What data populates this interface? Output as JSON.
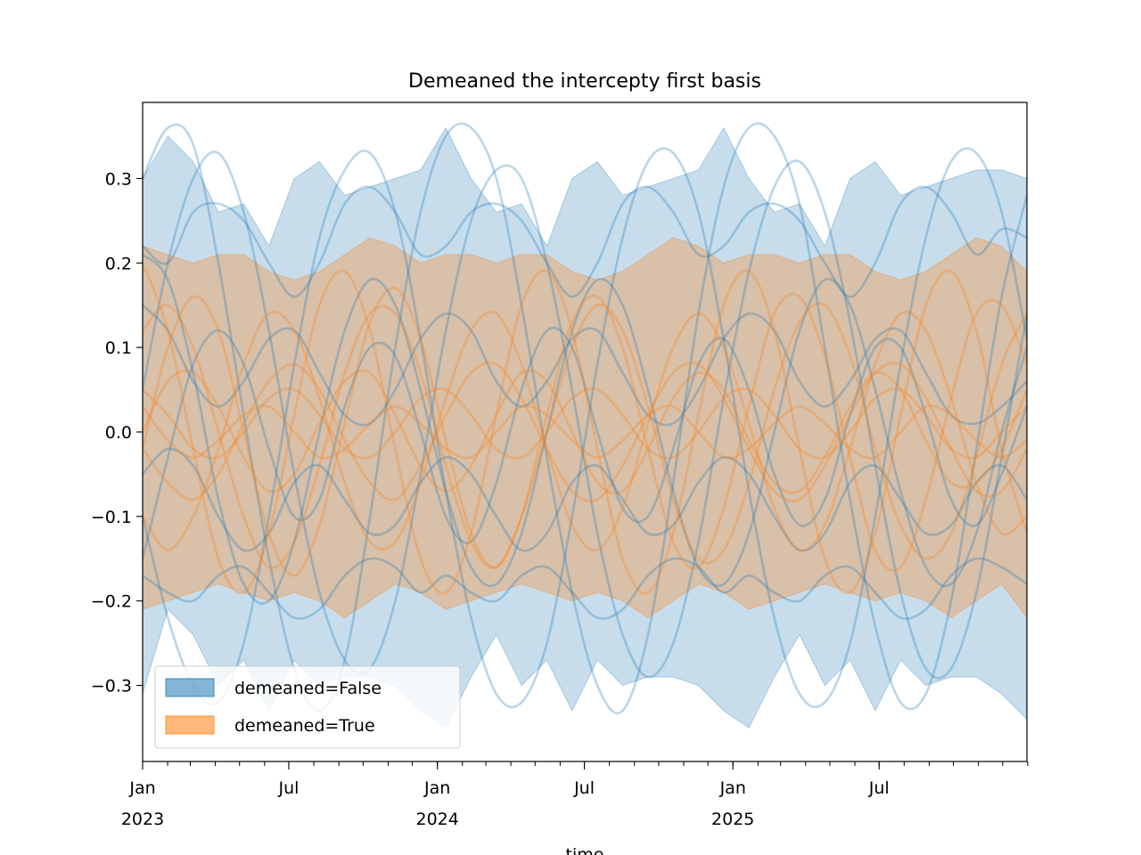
{
  "chart_data": {
    "type": "line",
    "title": "Demeaned the intercepty first basis",
    "xlabel": "time",
    "ylabel": "",
    "x_range": [
      "2023-01-01",
      "2025-12-31"
    ],
    "ylim": [
      -0.39,
      0.39
    ],
    "grid": false,
    "legend_position": "lower-left",
    "y_ticks": [
      {
        "value": 0.3,
        "label": "0.3"
      },
      {
        "value": 0.2,
        "label": "0.2"
      },
      {
        "value": 0.1,
        "label": "0.1"
      },
      {
        "value": 0.0,
        "label": "0.0"
      },
      {
        "value": -0.1,
        "label": "−0.1"
      },
      {
        "value": -0.2,
        "label": "−0.2"
      },
      {
        "value": -0.3,
        "label": "−0.3"
      }
    ],
    "x_ticks": [
      {
        "date": "2023-01-01",
        "label": "Jan",
        "sublabel": "2023"
      },
      {
        "date": "2023-07-01",
        "label": "Jul",
        "sublabel": ""
      },
      {
        "date": "2024-01-01",
        "label": "Jan",
        "sublabel": "2024"
      },
      {
        "date": "2024-07-01",
        "label": "Jul",
        "sublabel": ""
      },
      {
        "date": "2025-01-01",
        "label": "Jan",
        "sublabel": "2025"
      },
      {
        "date": "2025-07-01",
        "label": "Jul",
        "sublabel": ""
      }
    ],
    "series": [
      {
        "name": "demeaned=False",
        "color": "#1f77b4",
        "band_upper": [
          0.3,
          0.35,
          0.32,
          0.26,
          0.27,
          0.22,
          0.3,
          0.32,
          0.28,
          0.29,
          0.3,
          0.31,
          0.36,
          0.3,
          0.26,
          0.27,
          0.22,
          0.3,
          0.32,
          0.28,
          0.29,
          0.3,
          0.31,
          0.36,
          0.3,
          0.26,
          0.27,
          0.22,
          0.3,
          0.32,
          0.28,
          0.29,
          0.3,
          0.31,
          0.31,
          0.3
        ],
        "band_lower": [
          -0.31,
          -0.21,
          -0.24,
          -0.3,
          -0.27,
          -0.33,
          -0.27,
          -0.3,
          -0.29,
          -0.29,
          -0.3,
          -0.33,
          -0.35,
          -0.29,
          -0.24,
          -0.3,
          -0.27,
          -0.33,
          -0.27,
          -0.3,
          -0.29,
          -0.29,
          -0.3,
          -0.33,
          -0.35,
          -0.29,
          -0.24,
          -0.3,
          -0.27,
          -0.33,
          -0.27,
          -0.3,
          -0.29,
          -0.29,
          -0.31,
          -0.34
        ],
        "sample_lines": [
          [
            0.3,
            0.36,
            0.34,
            0.2,
            0.02,
            -0.15,
            -0.28,
            -0.33,
            -0.27,
            -0.1,
            0.1,
            0.26,
            0.35,
            0.36,
            0.3,
            0.15,
            -0.03,
            -0.19,
            -0.3,
            -0.33,
            -0.24,
            -0.06,
            0.14,
            0.29,
            0.36,
            0.35,
            0.27,
            0.1,
            -0.08,
            -0.23,
            -0.32,
            -0.31,
            -0.2,
            -0.02,
            0.16,
            0.28
          ],
          [
            0.22,
            0.2,
            0.26,
            0.27,
            0.25,
            0.2,
            0.16,
            0.2,
            0.27,
            0.29,
            0.26,
            0.21,
            0.22,
            0.26,
            0.27,
            0.25,
            0.2,
            0.16,
            0.2,
            0.27,
            0.29,
            0.26,
            0.21,
            0.22,
            0.26,
            0.27,
            0.25,
            0.2,
            0.16,
            0.2,
            0.27,
            0.29,
            0.26,
            0.21,
            0.24,
            0.23
          ],
          [
            0.05,
            0.2,
            0.3,
            0.33,
            0.26,
            0.12,
            -0.05,
            -0.19,
            -0.27,
            -0.28,
            -0.2,
            -0.05,
            0.12,
            0.25,
            0.31,
            0.3,
            0.2,
            0.05,
            -0.12,
            -0.24,
            -0.29,
            -0.25,
            -0.13,
            0.04,
            0.19,
            0.29,
            0.32,
            0.26,
            0.13,
            -0.04,
            -0.19,
            -0.28,
            -0.28,
            -0.19,
            -0.03,
            0.14
          ],
          [
            -0.1,
            -0.22,
            -0.3,
            -0.32,
            -0.25,
            -0.1,
            0.08,
            0.23,
            0.31,
            0.33,
            0.26,
            0.11,
            -0.07,
            -0.22,
            -0.31,
            -0.32,
            -0.25,
            -0.1,
            0.08,
            0.23,
            0.32,
            0.33,
            0.26,
            0.11,
            -0.07,
            -0.22,
            -0.31,
            -0.32,
            -0.25,
            -0.1,
            0.08,
            0.23,
            0.32,
            0.33,
            0.26,
            0.11
          ],
          [
            0.15,
            0.12,
            0.06,
            0.03,
            0.06,
            0.11,
            0.12,
            0.07,
            0.02,
            0.01,
            0.05,
            0.11,
            0.14,
            0.12,
            0.06,
            0.03,
            0.06,
            0.11,
            0.12,
            0.07,
            0.02,
            0.01,
            0.05,
            0.11,
            0.14,
            0.12,
            0.06,
            0.03,
            0.06,
            0.11,
            0.12,
            0.07,
            0.02,
            0.01,
            0.03,
            0.06
          ],
          [
            -0.05,
            -0.02,
            -0.04,
            -0.1,
            -0.14,
            -0.12,
            -0.06,
            -0.04,
            -0.08,
            -0.12,
            -0.11,
            -0.06,
            -0.03,
            -0.05,
            -0.1,
            -0.14,
            -0.12,
            -0.06,
            -0.04,
            -0.08,
            -0.12,
            -0.11,
            -0.06,
            -0.03,
            -0.05,
            -0.1,
            -0.14,
            -0.12,
            -0.06,
            -0.04,
            -0.08,
            -0.12,
            -0.11,
            -0.06,
            -0.04,
            -0.08
          ],
          [
            -0.17,
            -0.19,
            -0.2,
            -0.17,
            -0.16,
            -0.19,
            -0.22,
            -0.21,
            -0.17,
            -0.15,
            -0.16,
            -0.19,
            -0.17,
            -0.19,
            -0.2,
            -0.17,
            -0.16,
            -0.19,
            -0.22,
            -0.21,
            -0.17,
            -0.15,
            -0.16,
            -0.19,
            -0.17,
            -0.19,
            -0.2,
            -0.17,
            -0.16,
            -0.19,
            -0.22,
            -0.21,
            -0.17,
            -0.15,
            -0.16,
            -0.18
          ],
          [
            0.21,
            0.18,
            0.07,
            -0.08,
            -0.18,
            -0.2,
            -0.13,
            0.0,
            0.12,
            0.18,
            0.15,
            0.05,
            -0.07,
            -0.16,
            -0.18,
            -0.12,
            0.0,
            0.12,
            0.18,
            0.15,
            0.05,
            -0.07,
            -0.16,
            -0.18,
            -0.12,
            0.0,
            0.12,
            0.18,
            0.15,
            0.05,
            -0.07,
            -0.16,
            -0.18,
            -0.12,
            0.0,
            0.1
          ],
          [
            -0.15,
            -0.03,
            0.08,
            0.12,
            0.08,
            -0.02,
            -0.1,
            -0.08,
            0.03,
            0.1,
            0.09,
            0.0,
            -0.1,
            -0.13,
            -0.06,
            0.05,
            0.12,
            0.1,
            0.0,
            -0.09,
            -0.1,
            -0.02,
            0.08,
            0.11,
            0.05,
            -0.05,
            -0.11,
            -0.08,
            0.02,
            0.1,
            0.1,
            0.02,
            -0.08,
            -0.11,
            -0.05,
            0.03
          ]
        ]
      },
      {
        "name": "demeaned=True",
        "color": "#ff7f0e",
        "band_upper": [
          0.22,
          0.21,
          0.2,
          0.21,
          0.21,
          0.19,
          0.18,
          0.19,
          0.21,
          0.23,
          0.22,
          0.2,
          0.21,
          0.21,
          0.2,
          0.21,
          0.21,
          0.19,
          0.18,
          0.19,
          0.21,
          0.23,
          0.22,
          0.2,
          0.21,
          0.21,
          0.2,
          0.21,
          0.21,
          0.19,
          0.18,
          0.19,
          0.21,
          0.23,
          0.22,
          0.19
        ],
        "band_lower": [
          -0.21,
          -0.2,
          -0.19,
          -0.18,
          -0.19,
          -0.2,
          -0.19,
          -0.2,
          -0.22,
          -0.2,
          -0.18,
          -0.19,
          -0.21,
          -0.2,
          -0.19,
          -0.18,
          -0.19,
          -0.2,
          -0.19,
          -0.2,
          -0.22,
          -0.2,
          -0.18,
          -0.19,
          -0.21,
          -0.2,
          -0.19,
          -0.18,
          -0.19,
          -0.2,
          -0.19,
          -0.2,
          -0.22,
          -0.2,
          -0.18,
          -0.22
        ],
        "sample_lines": [
          [
            0.2,
            0.12,
            -0.02,
            -0.15,
            -0.19,
            -0.12,
            0.02,
            0.15,
            0.19,
            0.12,
            -0.02,
            -0.15,
            -0.19,
            -0.12,
            0.02,
            0.15,
            0.19,
            0.12,
            -0.02,
            -0.15,
            -0.19,
            -0.12,
            0.02,
            0.15,
            0.19,
            0.12,
            -0.02,
            -0.15,
            -0.19,
            -0.12,
            0.02,
            0.15,
            0.19,
            0.12,
            -0.02,
            -0.12
          ],
          [
            -0.02,
            0.1,
            0.16,
            0.12,
            0.0,
            -0.12,
            -0.17,
            -0.11,
            0.01,
            0.13,
            0.17,
            0.11,
            -0.01,
            -0.12,
            -0.16,
            -0.1,
            0.02,
            0.13,
            0.16,
            0.1,
            -0.02,
            -0.13,
            -0.16,
            -0.09,
            0.03,
            0.14,
            0.16,
            0.09,
            -0.03,
            -0.14,
            -0.16,
            -0.08,
            0.04,
            0.14,
            0.15,
            0.08
          ],
          [
            0.05,
            0.02,
            -0.02,
            -0.03,
            0.0,
            0.04,
            0.05,
            0.02,
            -0.02,
            -0.03,
            0.0,
            0.04,
            0.05,
            0.02,
            -0.02,
            -0.03,
            0.0,
            0.04,
            0.05,
            0.02,
            -0.02,
            -0.03,
            0.0,
            0.04,
            0.05,
            0.02,
            -0.02,
            -0.03,
            0.0,
            0.04,
            0.05,
            0.02,
            -0.02,
            -0.03,
            0.0,
            0.03
          ],
          [
            0.03,
            -0.01,
            -0.03,
            -0.01,
            0.02,
            0.03,
            0.0,
            -0.03,
            -0.02,
            0.01,
            0.03,
            0.01,
            -0.02,
            -0.03,
            0.0,
            0.03,
            0.02,
            -0.01,
            -0.03,
            -0.01,
            0.02,
            0.03,
            0.0,
            -0.03,
            -0.02,
            0.01,
            0.03,
            0.01,
            -0.02,
            -0.03,
            0.0,
            0.03,
            0.02,
            -0.01,
            -0.03,
            -0.01
          ],
          [
            -0.1,
            -0.14,
            -0.1,
            -0.02,
            0.08,
            0.14,
            0.12,
            0.04,
            -0.06,
            -0.13,
            -0.13,
            -0.06,
            0.04,
            0.12,
            0.14,
            0.08,
            -0.02,
            -0.11,
            -0.14,
            -0.09,
            0.01,
            0.1,
            0.14,
            0.1,
            0.01,
            -0.09,
            -0.14,
            -0.11,
            -0.02,
            0.08,
            0.14,
            0.12,
            0.04,
            -0.06,
            -0.12,
            -0.1
          ],
          [
            0.12,
            0.15,
            0.1,
            0.0,
            -0.1,
            -0.16,
            -0.13,
            -0.04,
            0.07,
            0.14,
            0.14,
            0.07,
            -0.04,
            -0.13,
            -0.16,
            -0.1,
            0.0,
            0.1,
            0.15,
            0.12,
            0.03,
            -0.08,
            -0.15,
            -0.14,
            -0.06,
            0.05,
            0.13,
            0.15,
            0.09,
            -0.02,
            -0.11,
            -0.15,
            -0.12,
            -0.03,
            0.08,
            0.14
          ],
          [
            0.0,
            0.06,
            0.07,
            0.03,
            -0.03,
            -0.07,
            -0.05,
            0.01,
            0.06,
            0.07,
            0.02,
            -0.04,
            -0.07,
            -0.04,
            0.02,
            0.07,
            0.06,
            0.0,
            -0.06,
            -0.07,
            -0.02,
            0.04,
            0.07,
            0.05,
            -0.01,
            -0.06,
            -0.07,
            -0.03,
            0.03,
            0.07,
            0.05,
            -0.01,
            -0.06,
            -0.06,
            -0.02,
            0.05
          ],
          [
            -0.02,
            -0.06,
            -0.08,
            -0.05,
            0.01,
            0.06,
            0.08,
            0.05,
            -0.01,
            -0.06,
            -0.08,
            -0.04,
            0.02,
            0.07,
            0.08,
            0.04,
            -0.02,
            -0.07,
            -0.08,
            -0.04,
            0.02,
            0.07,
            0.08,
            0.04,
            -0.02,
            -0.07,
            -0.08,
            -0.04,
            0.02,
            0.07,
            0.08,
            0.04,
            -0.02,
            -0.07,
            -0.07,
            -0.02
          ]
        ]
      }
    ]
  }
}
